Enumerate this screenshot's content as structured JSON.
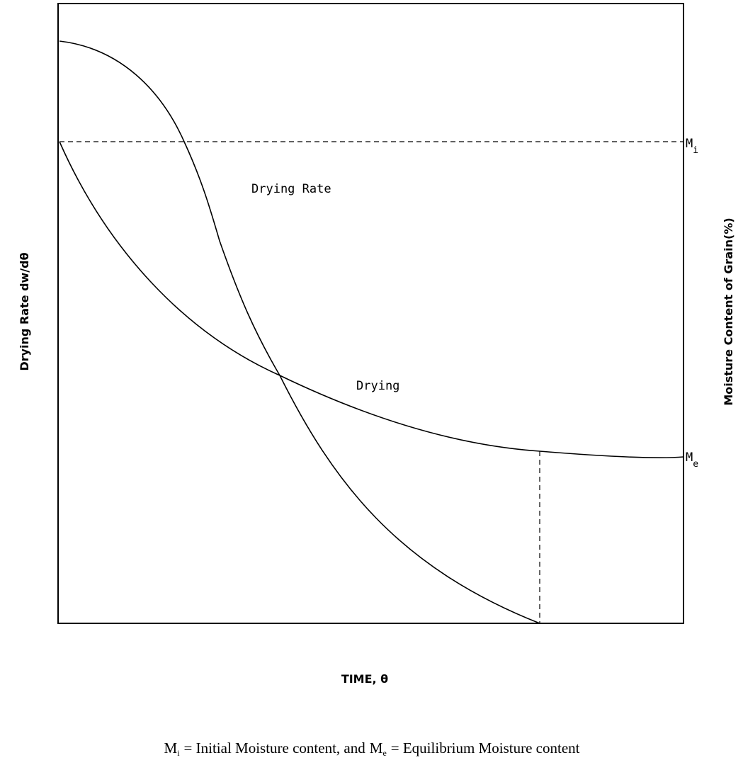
{
  "diagram": {
    "curve_labels": {
      "drying_rate": "Drying Rate",
      "drying": "Drying"
    },
    "left_axis_label": "Drying Rate dw/dθ",
    "right_axis_label": "Moisture Content of Grain(%)",
    "x_axis_label": "TIME, θ",
    "mi_label": {
      "symbol": "M",
      "sub": "i"
    },
    "me_label": {
      "symbol": "M",
      "sub": "e"
    }
  },
  "caption": {
    "mi_symbol": "M",
    "mi_sub": "i",
    "mi_text": "= Initial Moisture content, and",
    "me_symbol": "M",
    "me_sub": "e",
    "me_text": "= Equilibrium Moisture content"
  }
}
